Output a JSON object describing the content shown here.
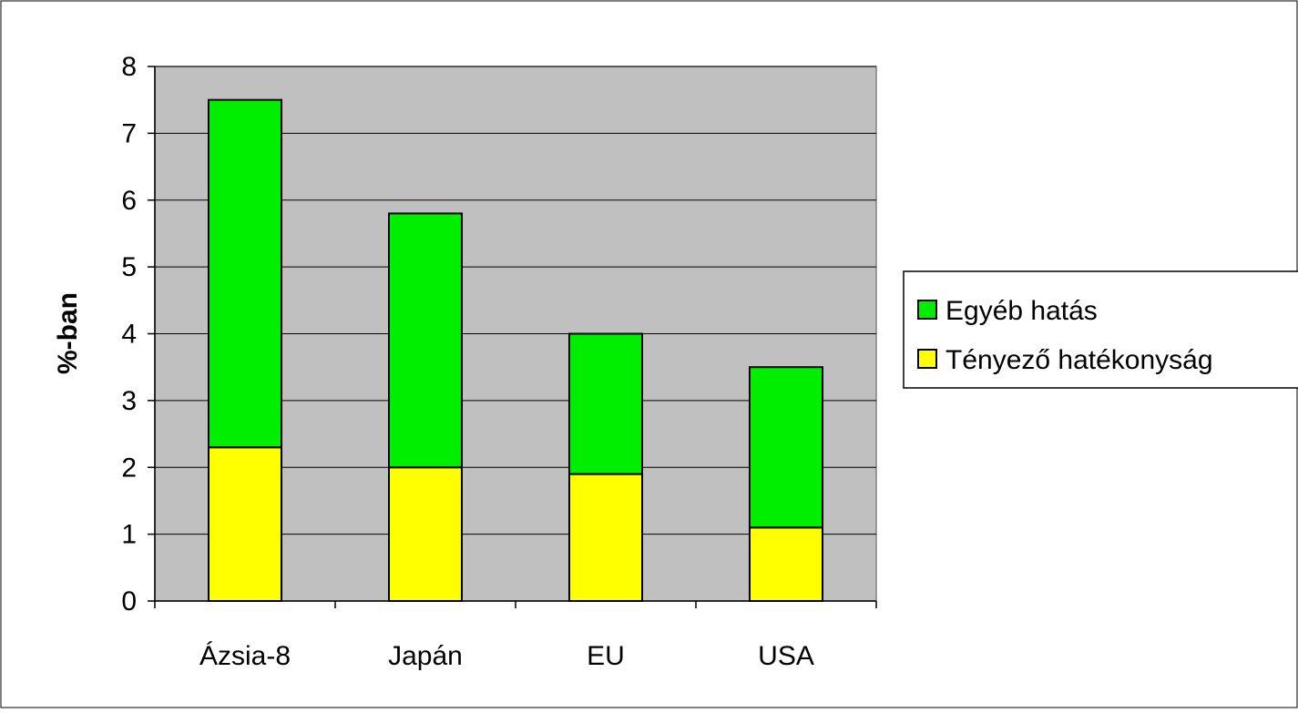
{
  "chart_data": {
    "type": "bar",
    "stacked": true,
    "categories": [
      "Ázsia-8",
      "Japán",
      "EU",
      "USA"
    ],
    "series": [
      {
        "name": "Tényező hatékonyság",
        "values": [
          2.3,
          2.0,
          1.9,
          1.1
        ],
        "color": "#ffff00"
      },
      {
        "name": "Egyéb hatás",
        "values": [
          5.2,
          3.8,
          2.1,
          2.4
        ],
        "color": "#00ee00"
      }
    ],
    "ylabel": "%-ban",
    "xlabel": "",
    "ylim": [
      0,
      8
    ],
    "yticks": [
      "0",
      "1",
      "2",
      "3",
      "4",
      "5",
      "6",
      "7",
      "8"
    ],
    "grid": true,
    "plot_background": "#c0c0c0",
    "legend_position": "right"
  }
}
